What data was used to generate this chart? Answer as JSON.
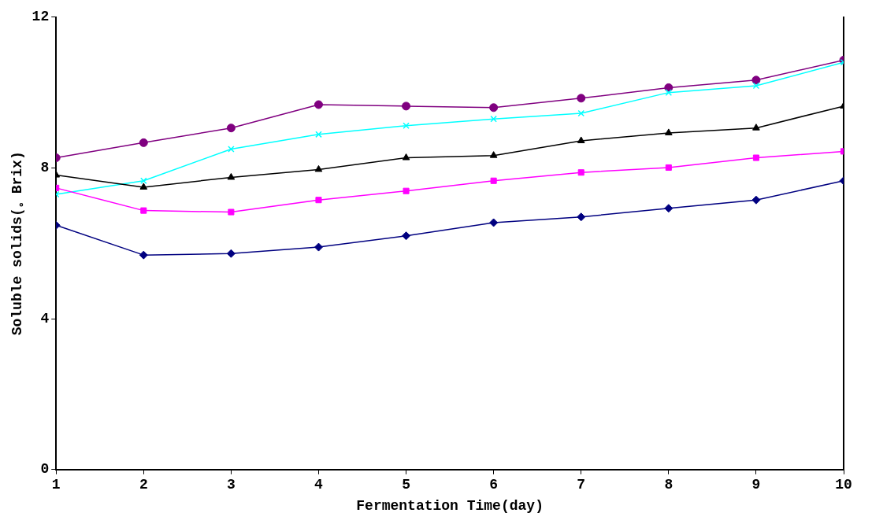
{
  "chart_data": {
    "type": "line",
    "xlabel": "Fermentation Time(day)",
    "ylabel": "Soluble solids(。Brix)",
    "x": [
      1,
      2,
      3,
      4,
      5,
      6,
      7,
      8,
      9,
      10
    ],
    "xlim": [
      1,
      10
    ],
    "xticks": [
      1,
      2,
      3,
      4,
      5,
      6,
      7,
      8,
      9,
      10
    ],
    "ylim": [
      0,
      12
    ],
    "yticks": [
      0,
      4,
      8,
      12
    ],
    "grid": false,
    "legend": false,
    "line_style": "solid",
    "series": [
      {
        "color": "#800080",
        "marker": "circle",
        "values": [
          8.27,
          8.67,
          9.06,
          9.68,
          9.64,
          9.6,
          9.85,
          10.13,
          10.33,
          10.86
        ]
      },
      {
        "color": "#00ffff",
        "marker": "cross",
        "values": [
          7.3,
          7.66,
          8.5,
          8.89,
          9.12,
          9.3,
          9.45,
          10.0,
          10.18,
          10.8
        ]
      },
      {
        "color": "#000000",
        "marker": "triangle",
        "values": [
          7.81,
          7.49,
          7.75,
          7.96,
          8.27,
          8.33,
          8.72,
          8.93,
          9.06,
          9.64
        ]
      },
      {
        "color": "#ff00ff",
        "marker": "square",
        "values": [
          7.47,
          6.87,
          6.83,
          7.15,
          7.39,
          7.66,
          7.88,
          8.01,
          8.27,
          8.44
        ]
      },
      {
        "color": "#000080",
        "marker": "diamond",
        "values": [
          6.48,
          5.69,
          5.73,
          5.9,
          6.2,
          6.55,
          6.7,
          6.93,
          7.15,
          7.66
        ]
      }
    ]
  }
}
